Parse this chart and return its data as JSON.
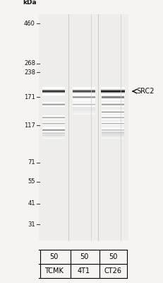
{
  "bg_color": "#f5f4f2",
  "blot_bg": "#f0efec",
  "ladder_labels": [
    "kDa",
    "460",
    "268",
    "238",
    "171",
    "117",
    "71",
    "55",
    "41",
    "31"
  ],
  "ladder_kda": [
    null,
    460,
    268,
    238,
    171,
    117,
    71,
    55,
    41,
    31
  ],
  "src2_label": "← SRC2",
  "src2_kda": 185,
  "lane_labels_top": [
    "50",
    "50",
    "50"
  ],
  "lane_labels_bot": [
    "TCMK",
    "4T1",
    "CT26"
  ],
  "lane_colors": [
    "#d8d5ce",
    "#dedad3",
    "#d8d5ce"
  ],
  "figsize": [
    2.32,
    4.0
  ],
  "dpi": 100
}
